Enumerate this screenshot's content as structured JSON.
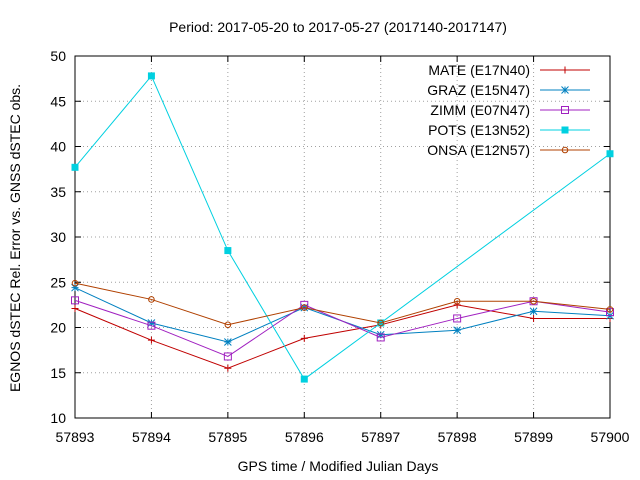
{
  "chart_data": {
    "type": "line",
    "title": "Period: 2017-05-20 to 2017-05-27 (2017140-2017147)",
    "xlabel": "GPS time / Modified Julian Days",
    "ylabel": "EGNOS dSTEC Rel. Error vs. GNSS dSTEC obs.",
    "xlim": [
      57893,
      57900
    ],
    "ylim": [
      10,
      50
    ],
    "xticks": [
      57893,
      57894,
      57895,
      57896,
      57897,
      57898,
      57899,
      57900
    ],
    "yticks": [
      10,
      15,
      20,
      25,
      30,
      35,
      40,
      45,
      50
    ],
    "grid": true,
    "legend_position": "top-right",
    "x": [
      57893,
      57894,
      57895,
      57896,
      57897,
      57898,
      57899,
      57900
    ],
    "series": [
      {
        "name": "MATE (E17N40)",
        "color": "#c00000",
        "marker": "plus",
        "values": [
          22.1,
          18.6,
          15.5,
          18.8,
          20.3,
          22.5,
          21.0,
          21.0
        ]
      },
      {
        "name": "GRAZ (E15N47)",
        "color": "#0080c0",
        "marker": "star",
        "values": [
          24.4,
          20.5,
          18.4,
          22.2,
          19.2,
          19.7,
          21.8,
          21.3
        ]
      },
      {
        "name": "ZIMM (E07N47)",
        "color": "#a020c0",
        "marker": "open-square",
        "values": [
          23.0,
          20.2,
          16.8,
          22.5,
          18.9,
          21.0,
          22.9,
          21.7
        ]
      },
      {
        "name": "POTS (E13N52)",
        "color": "#00d0e0",
        "marker": "filled-square",
        "values": [
          37.7,
          47.8,
          28.5,
          14.3,
          20.5,
          null,
          null,
          39.2
        ]
      },
      {
        "name": "ONSA (E12N57)",
        "color": "#b04000",
        "marker": "open-circle",
        "values": [
          24.9,
          23.1,
          20.3,
          22.2,
          20.5,
          22.9,
          22.9,
          22.0
        ]
      }
    ]
  }
}
